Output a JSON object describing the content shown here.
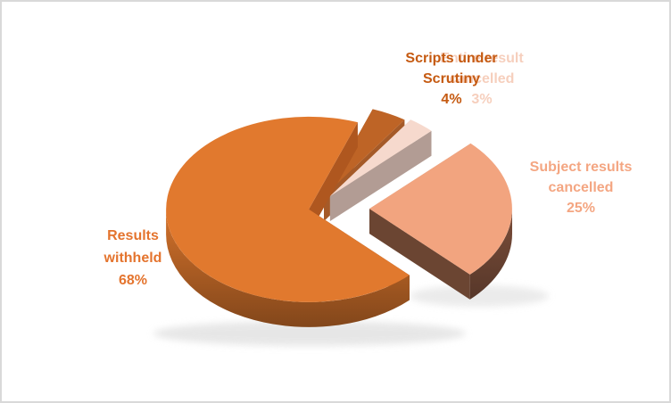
{
  "frame": {
    "background": "#FFFFFF",
    "border_color": "#D9D9D9"
  },
  "chart_data": {
    "type": "pie",
    "style": "3d-exploded",
    "unit": "percent",
    "legend": "none",
    "start_angle_deg": 20,
    "slices": [
      {
        "label": "Scripts under Scrutiny",
        "value": 4,
        "pct_label": "4%",
        "color": "#BE6426",
        "wall_start": "#9C4E1D",
        "wall_end": "#A55A28",
        "rim": "#9C4E1D",
        "explode": 24
      },
      {
        "label": "Entire result cancelled",
        "value": 3,
        "pct_label": "3%",
        "color": "#F6D9CD",
        "wall_start": "#C7B1A7",
        "wall_end": "#B29C94",
        "rim": "#B29C94",
        "explode": 28
      },
      {
        "label": "Subject results cancelled",
        "value": 25,
        "pct_label": "25%",
        "color": "#F2A47F",
        "wall_start": "#C9A795",
        "wall_end": "#6B4532",
        "rim": "#7B4E3A",
        "explode": 62
      },
      {
        "label": "Results withheld",
        "value": 68,
        "pct_label": "68%",
        "color": "#E1792E",
        "wall_start": "#8A4517",
        "wall_end": "#AF571F",
        "rim": "#D4722B",
        "explode": 6
      }
    ]
  },
  "labels": {
    "scripts": {
      "lines": [
        "Scripts under",
        "Scrutiny",
        "4%"
      ],
      "color": "#C55A11"
    },
    "entire": {
      "lines": [
        "Entire result",
        "cancelled",
        "3%"
      ],
      "color": "#F6CFBD"
    },
    "subject": {
      "lines": [
        "Subject results",
        "cancelled",
        "25%"
      ],
      "color": "#F4A682"
    },
    "results": {
      "lines": [
        "Results",
        "withheld",
        "68%"
      ],
      "color": "#E4742E"
    }
  }
}
